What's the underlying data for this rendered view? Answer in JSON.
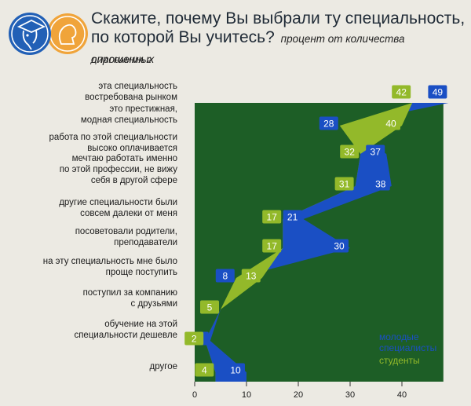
{
  "header": {
    "title_line1": "Скажите, почему Вы выбрали ту специальность,",
    "title_line2": "по которой Вы учитесь?",
    "subtitle": "процент от количества опрошенных",
    "diagram_label": "ДИАГРАММА 2"
  },
  "colors": {
    "students": "#93b92a",
    "young_specialists": "#1a4fc4",
    "background_area": "#1d5e26",
    "page": "#eceae3"
  },
  "chart_data": {
    "type": "area",
    "title": "Скажите, почему Вы выбрали ту специальность, по которой Вы учитесь?",
    "subtitle": "процент от количества опрошенных",
    "categories": [
      [
        "эта специальность",
        "востребована рынком"
      ],
      [
        "это престижная,",
        "модная специальность"
      ],
      [
        "работа по этой специальности",
        "высоко оплачивается"
      ],
      [
        "мечтаю работать именно",
        "по этой профессии, не вижу",
        "себя в другой сфере"
      ],
      [
        "другие специальности были",
        "совсем далеки от меня"
      ],
      [
        "посоветовали родители,",
        "преподаватели"
      ],
      [
        "на эту специальность мне было",
        "проще поступить"
      ],
      [
        "поступил за компанию",
        "с друзьями"
      ],
      [
        "обучение на этой",
        "специальности дешевле"
      ],
      [
        "другое"
      ]
    ],
    "series": [
      {
        "name": "молодые специалисты",
        "values": [
          49,
          28,
          37,
          38,
          21,
          30,
          8,
          5,
          3,
          10
        ]
      },
      {
        "name": "студенты",
        "values": [
          42,
          40,
          32,
          31,
          17,
          17,
          13,
          5,
          2,
          4
        ]
      }
    ],
    "x_ticks": [
      0,
      10,
      20,
      30,
      40
    ],
    "xlim": [
      0,
      48
    ],
    "grid": false,
    "legend": [
      "молодые",
      "специалисты",
      "студенты"
    ],
    "legend_position": "bottom-right"
  }
}
